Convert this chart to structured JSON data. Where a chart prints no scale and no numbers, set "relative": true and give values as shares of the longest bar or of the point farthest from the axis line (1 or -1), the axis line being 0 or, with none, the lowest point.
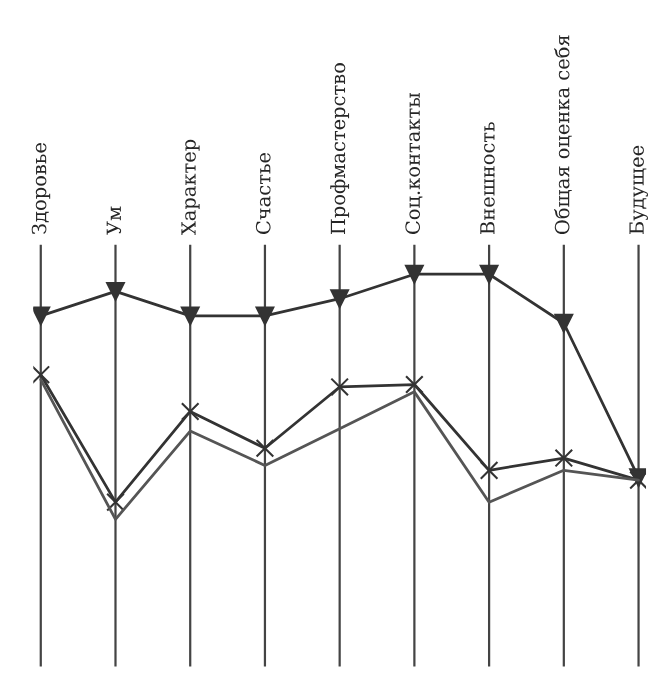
{
  "chart_data": {
    "type": "line",
    "relative": true,
    "grid": "x",
    "legend": false,
    "categories": [
      "Здоровье",
      "Ум",
      "Характер",
      "Счастье",
      "Профмастерство",
      "Соц.контакты",
      "Внешность",
      "Общая оценка себя",
      "Будущее"
    ],
    "series": [
      {
        "color": "#333333",
        "marker": "triangle",
        "values": [
          0.83,
          0.93,
          0.83,
          0.83,
          0.9,
          1,
          1,
          0.8,
          0.17
        ]
      },
      {
        "color": "#333333",
        "marker": "cross",
        "values": [
          0.59,
          0.07,
          0.44,
          0.29,
          0.54,
          0.55,
          0.2,
          0.25,
          0.16
        ]
      },
      {
        "color": "#555555",
        "marker": "none",
        "values": [
          0.57,
          0,
          0.36,
          0.22,
          0.37,
          0.52,
          0.07,
          0.2,
          0.16
        ]
      }
    ]
  }
}
